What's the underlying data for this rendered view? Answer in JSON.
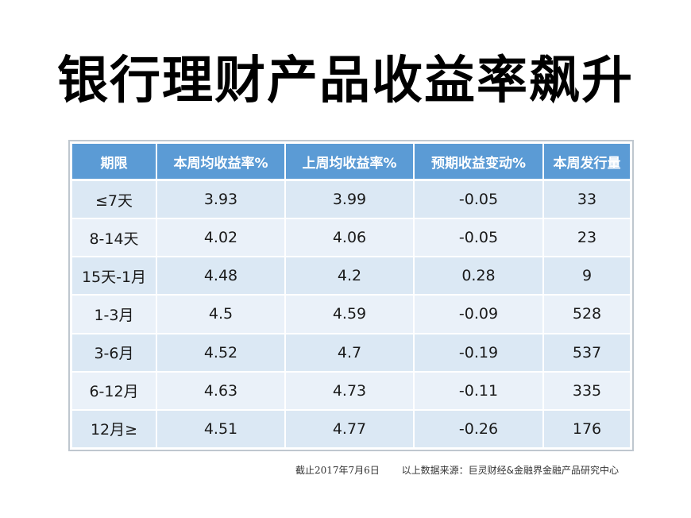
{
  "title": "银行理财产品收益率飙升",
  "table": {
    "headers": [
      "期限",
      "本周均收益率%",
      "上周均收益率%",
      "预期收益变动%",
      "本周发行量"
    ],
    "rows": [
      [
        "≤7天",
        "3.93",
        "3.99",
        "-0.05",
        "33"
      ],
      [
        "8-14天",
        "4.02",
        "4.06",
        "-0.05",
        "23"
      ],
      [
        "15天-1月",
        "4.48",
        "4.2",
        "0.28",
        "9"
      ],
      [
        "1-3月",
        "4.5",
        "4.59",
        "-0.09",
        "528"
      ],
      [
        "3-6月",
        "4.52",
        "4.7",
        "-0.19",
        "537"
      ],
      [
        "6-12月",
        "4.63",
        "4.73",
        "-0.11",
        "335"
      ],
      [
        "12月≥",
        "4.51",
        "4.77",
        "-0.26",
        "176"
      ]
    ]
  },
  "footnote": {
    "date": "截止2017年7月6日",
    "source": "以上数据来源：巨灵财经&金融界金融产品研究中心"
  },
  "colors": {
    "header_bg": "#5b9bd5",
    "row_bg": "#dbe8f4",
    "row_alt_bg": "#eaf1f9"
  }
}
